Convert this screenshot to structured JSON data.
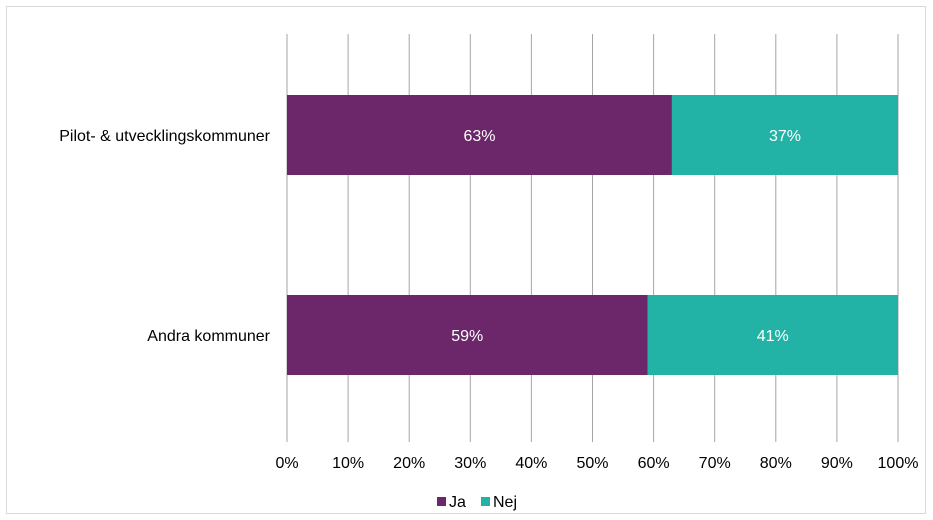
{
  "chart_data": {
    "type": "bar",
    "orientation": "horizontal",
    "stacked": true,
    "categories": [
      "Pilot- & utvecklingskommuner",
      "Andra kommuner"
    ],
    "series": [
      {
        "name": "Ja",
        "values": [
          63,
          59
        ],
        "labels": [
          "63%",
          "59%"
        ],
        "color": "#6b2769"
      },
      {
        "name": "Nej",
        "values": [
          37,
          41
        ],
        "labels": [
          "37%",
          "41%"
        ],
        "color": "#22b3a6"
      }
    ],
    "xlim": [
      0,
      100
    ],
    "xticks": [
      0,
      10,
      20,
      30,
      40,
      50,
      60,
      70,
      80,
      90,
      100
    ],
    "xtick_labels": [
      "0%",
      "10%",
      "20%",
      "30%",
      "40%",
      "50%",
      "60%",
      "70%",
      "80%",
      "90%",
      "100%"
    ],
    "grid": "vertical",
    "legend_position": "bottom"
  }
}
